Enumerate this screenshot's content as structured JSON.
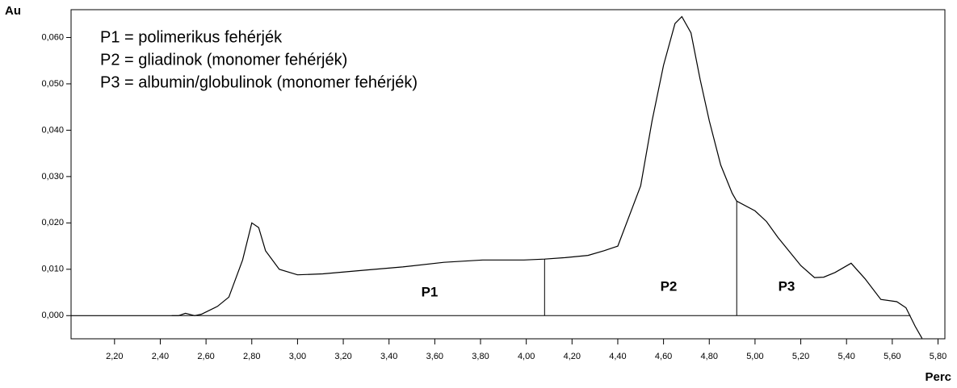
{
  "chart_data": {
    "type": "line",
    "ylabel": "Au",
    "xlabel": "Perc",
    "legend_lines": [
      "P1 = polimerikus fehérjék",
      "P2 = gliadinok (monomer fehérjék)",
      "P3 = albumin/globulinok (monomer fehérjék)"
    ],
    "annotations": [
      "P1",
      "P2",
      "P3"
    ],
    "x": [
      2.01,
      2.2,
      2.4,
      2.48,
      2.51,
      2.55,
      2.58,
      2.65,
      2.7,
      2.76,
      2.8,
      2.83,
      2.86,
      2.92,
      3.0,
      3.11,
      3.29,
      3.46,
      3.64,
      3.81,
      3.99,
      4.08,
      4.17,
      4.27,
      4.34,
      4.4,
      4.5,
      4.55,
      4.6,
      4.65,
      4.68,
      4.72,
      4.76,
      4.8,
      4.85,
      4.9,
      4.92,
      5.0,
      5.05,
      5.1,
      5.2,
      5.26,
      5.3,
      5.35,
      5.42,
      5.48,
      5.55,
      5.62,
      5.66,
      5.7,
      5.73
    ],
    "series": [
      {
        "color": "#000000",
        "values": [
          0,
          0,
          0,
          0,
          0.0005,
          0,
          0.0003,
          0.002,
          0.004,
          0.012,
          0.02,
          0.019,
          0.014,
          0.01,
          0.0088,
          0.009,
          0.0098,
          0.0105,
          0.0115,
          0.012,
          0.012,
          0.0122,
          0.0125,
          0.013,
          0.014,
          0.015,
          0.028,
          0.042,
          0.054,
          0.063,
          0.0645,
          0.061,
          0.051,
          0.042,
          0.0325,
          0.0264,
          0.0247,
          0.0226,
          0.0203,
          0.0169,
          0.0108,
          0.0082,
          0.0083,
          0.0093,
          0.0113,
          0.008,
          0.0035,
          0.003,
          0.0017,
          -0.0023,
          -0.0049
        ]
      }
    ],
    "dividers": [
      4.08,
      4.92
    ],
    "baseline_x": [
      2.45,
      5.68
    ],
    "xlim": [
      2.01,
      5.83
    ],
    "ylim": [
      -0.005,
      0.066
    ],
    "xticks": [
      {
        "value": 2.2,
        "label": "2,20"
      },
      {
        "value": 2.4,
        "label": "2,40"
      },
      {
        "value": 2.6,
        "label": "2,60"
      },
      {
        "value": 2.8,
        "label": "2,80"
      },
      {
        "value": 3.0,
        "label": "3,00"
      },
      {
        "value": 3.2,
        "label": "3,20"
      },
      {
        "value": 3.4,
        "label": "3,40"
      },
      {
        "value": 3.6,
        "label": "3,60"
      },
      {
        "value": 3.8,
        "label": "3,80"
      },
      {
        "value": 4.0,
        "label": "4,00"
      },
      {
        "value": 4.2,
        "label": "4,20"
      },
      {
        "value": 4.4,
        "label": "4,40"
      },
      {
        "value": 4.6,
        "label": "4,60"
      },
      {
        "value": 4.8,
        "label": "4,80"
      },
      {
        "value": 5.0,
        "label": "5,00"
      },
      {
        "value": 5.2,
        "label": "5,20"
      },
      {
        "value": 5.4,
        "label": "5,40"
      },
      {
        "value": 5.6,
        "label": "5,60"
      },
      {
        "value": 5.8,
        "label": "5,80"
      }
    ],
    "yticks": [
      {
        "value": 0,
        "label": "0,000"
      },
      {
        "value": 0.01,
        "label": "0,010"
      },
      {
        "value": 0.02,
        "label": "0,020"
      },
      {
        "value": 0.03,
        "label": "0,030"
      },
      {
        "value": 0.04,
        "label": "0,040"
      },
      {
        "value": 0.05,
        "label": "0,050"
      },
      {
        "value": 0.06,
        "label": "0,060"
      }
    ]
  }
}
